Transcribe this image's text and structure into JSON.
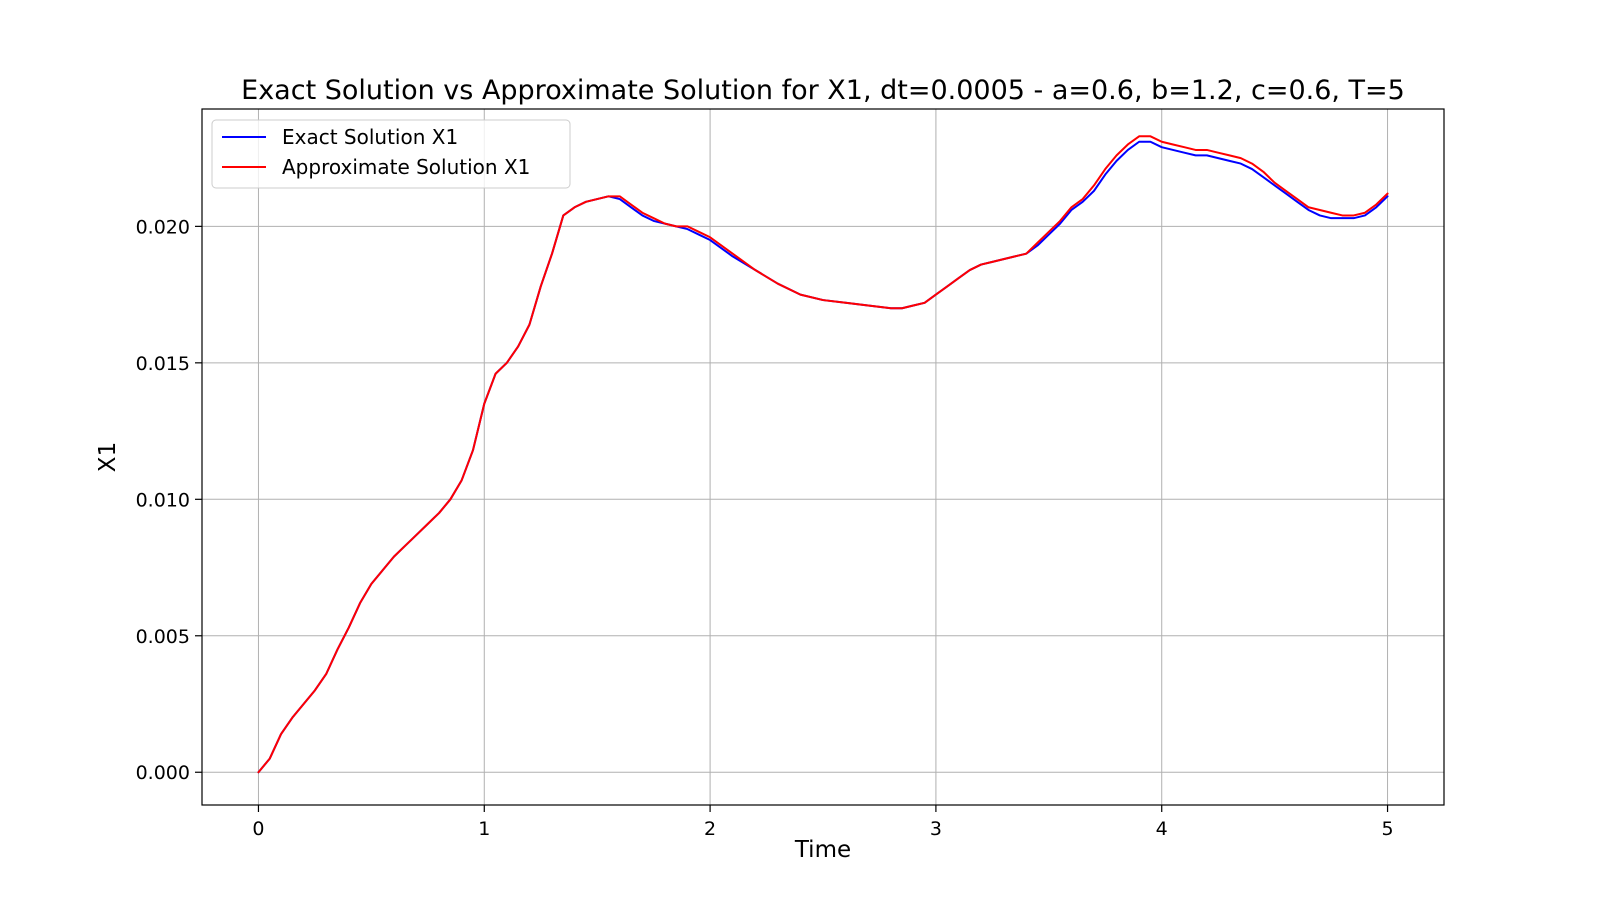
{
  "chart_data": {
    "type": "line",
    "title": "Exact Solution vs Approximate Solution for X1, dt=0.0005 - a=0.6, b=1.2, c=0.6, T=5",
    "xlabel": "Time",
    "ylabel": "X1",
    "xlim": [
      -0.25,
      5.25
    ],
    "ylim": [
      -0.0012,
      0.0243
    ],
    "x_ticks": [
      0,
      1,
      2,
      3,
      4,
      5
    ],
    "x_tick_labels": [
      "0",
      "1",
      "2",
      "3",
      "4",
      "5"
    ],
    "y_ticks": [
      0.0,
      0.005,
      0.01,
      0.015,
      0.02
    ],
    "y_tick_labels": [
      "0.000",
      "0.005",
      "0.010",
      "0.015",
      "0.020"
    ],
    "grid": true,
    "legend_position": "upper-left",
    "series": [
      {
        "name": "Exact Solution X1",
        "color": "#0000ff",
        "x": [
          0,
          0.05,
          0.1,
          0.15,
          0.2,
          0.25,
          0.3,
          0.35,
          0.4,
          0.45,
          0.5,
          0.55,
          0.6,
          0.65,
          0.7,
          0.75,
          0.8,
          0.85,
          0.9,
          0.95,
          1.0,
          1.05,
          1.1,
          1.15,
          1.2,
          1.25,
          1.3,
          1.35,
          1.4,
          1.45,
          1.5,
          1.55,
          1.6,
          1.65,
          1.7,
          1.75,
          1.8,
          1.85,
          1.9,
          1.95,
          2.0,
          2.1,
          2.2,
          2.3,
          2.4,
          2.5,
          2.6,
          2.7,
          2.8,
          2.85,
          2.9,
          2.95,
          3.0,
          3.05,
          3.1,
          3.15,
          3.2,
          3.25,
          3.3,
          3.35,
          3.4,
          3.45,
          3.5,
          3.55,
          3.6,
          3.65,
          3.7,
          3.75,
          3.8,
          3.85,
          3.9,
          3.95,
          4.0,
          4.05,
          4.1,
          4.15,
          4.2,
          4.25,
          4.3,
          4.35,
          4.4,
          4.45,
          4.5,
          4.55,
          4.6,
          4.65,
          4.7,
          4.75,
          4.8,
          4.85,
          4.9,
          4.95,
          5.0
        ],
        "y": [
          0.0,
          0.0005,
          0.0014,
          0.002,
          0.0025,
          0.003,
          0.0036,
          0.0045,
          0.0053,
          0.0062,
          0.0069,
          0.0074,
          0.0079,
          0.0083,
          0.0087,
          0.0091,
          0.0095,
          0.01,
          0.0107,
          0.0118,
          0.0135,
          0.0146,
          0.015,
          0.0156,
          0.0164,
          0.0178,
          0.019,
          0.0204,
          0.0207,
          0.0209,
          0.021,
          0.0211,
          0.021,
          0.0207,
          0.0204,
          0.0202,
          0.0201,
          0.02,
          0.0199,
          0.0197,
          0.0195,
          0.0189,
          0.0184,
          0.0179,
          0.0175,
          0.0173,
          0.0172,
          0.0171,
          0.017,
          0.017,
          0.0171,
          0.0172,
          0.0175,
          0.0178,
          0.0181,
          0.0184,
          0.0186,
          0.0187,
          0.0188,
          0.0189,
          0.019,
          0.0193,
          0.0197,
          0.0201,
          0.0206,
          0.0209,
          0.0213,
          0.0219,
          0.0224,
          0.0228,
          0.0231,
          0.0231,
          0.0229,
          0.0228,
          0.0227,
          0.0226,
          0.0226,
          0.0225,
          0.0224,
          0.0223,
          0.0221,
          0.0218,
          0.0215,
          0.0212,
          0.0209,
          0.0206,
          0.0204,
          0.0203,
          0.0203,
          0.0203,
          0.0204,
          0.0207,
          0.0211
        ]
      },
      {
        "name": "Approximate Solution X1",
        "color": "#ff0000",
        "x": [
          0,
          0.05,
          0.1,
          0.15,
          0.2,
          0.25,
          0.3,
          0.35,
          0.4,
          0.45,
          0.5,
          0.55,
          0.6,
          0.65,
          0.7,
          0.75,
          0.8,
          0.85,
          0.9,
          0.95,
          1.0,
          1.05,
          1.1,
          1.15,
          1.2,
          1.25,
          1.3,
          1.35,
          1.4,
          1.45,
          1.5,
          1.55,
          1.6,
          1.65,
          1.7,
          1.75,
          1.8,
          1.85,
          1.9,
          1.95,
          2.0,
          2.1,
          2.2,
          2.3,
          2.4,
          2.5,
          2.6,
          2.7,
          2.8,
          2.85,
          2.9,
          2.95,
          3.0,
          3.05,
          3.1,
          3.15,
          3.2,
          3.25,
          3.3,
          3.35,
          3.4,
          3.45,
          3.5,
          3.55,
          3.6,
          3.65,
          3.7,
          3.75,
          3.8,
          3.85,
          3.9,
          3.95,
          4.0,
          4.05,
          4.1,
          4.15,
          4.2,
          4.25,
          4.3,
          4.35,
          4.4,
          4.45,
          4.5,
          4.55,
          4.6,
          4.65,
          4.7,
          4.75,
          4.8,
          4.85,
          4.9,
          4.95,
          5.0
        ],
        "y": [
          0.0,
          0.0005,
          0.0014,
          0.002,
          0.0025,
          0.003,
          0.0036,
          0.0045,
          0.0053,
          0.0062,
          0.0069,
          0.0074,
          0.0079,
          0.0083,
          0.0087,
          0.0091,
          0.0095,
          0.01,
          0.0107,
          0.0118,
          0.0135,
          0.0146,
          0.015,
          0.0156,
          0.0164,
          0.0178,
          0.019,
          0.0204,
          0.0207,
          0.0209,
          0.021,
          0.0211,
          0.0211,
          0.0208,
          0.0205,
          0.0203,
          0.0201,
          0.02,
          0.02,
          0.0198,
          0.0196,
          0.019,
          0.0184,
          0.0179,
          0.0175,
          0.0173,
          0.0172,
          0.0171,
          0.017,
          0.017,
          0.0171,
          0.0172,
          0.0175,
          0.0178,
          0.0181,
          0.0184,
          0.0186,
          0.0187,
          0.0188,
          0.0189,
          0.019,
          0.0194,
          0.0198,
          0.0202,
          0.0207,
          0.021,
          0.0215,
          0.0221,
          0.0226,
          0.023,
          0.0233,
          0.0233,
          0.0231,
          0.023,
          0.0229,
          0.0228,
          0.0228,
          0.0227,
          0.0226,
          0.0225,
          0.0223,
          0.022,
          0.0216,
          0.0213,
          0.021,
          0.0207,
          0.0206,
          0.0205,
          0.0204,
          0.0204,
          0.0205,
          0.0208,
          0.0212
        ]
      }
    ]
  }
}
